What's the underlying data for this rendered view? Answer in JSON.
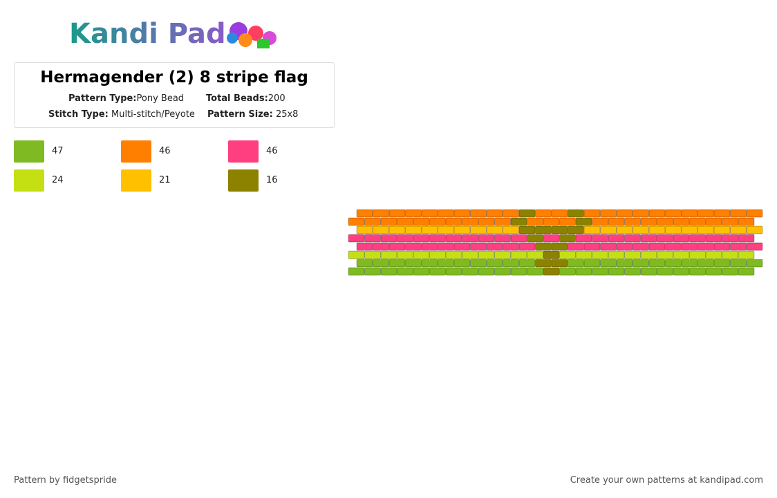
{
  "logo": {
    "text": "Kandi Pad"
  },
  "header": {
    "title": "Hermagender (2) 8 stripe flag",
    "details": [
      {
        "label": "Pattern Type:",
        "value": "Pony Bead"
      },
      {
        "label": "Total Beads:",
        "value": "200"
      },
      {
        "label": "Stitch Type:",
        "value": "Multi-stitch/Peyote"
      },
      {
        "label": "Pattern Size:",
        "value": "25x8"
      }
    ]
  },
  "legend": [
    {
      "color": "#7fba22",
      "count": "47"
    },
    {
      "color": "#ff7f00",
      "count": "46"
    },
    {
      "color": "#ff3f7f",
      "count": "46"
    },
    {
      "color": "#c4e012",
      "count": "24"
    },
    {
      "color": "#ffc000",
      "count": "21"
    },
    {
      "color": "#8c8200",
      "count": "16"
    }
  ],
  "footer": {
    "left": "Pattern by fidgetspride",
    "right": "Create your own patterns at kandipad.com"
  }
}
